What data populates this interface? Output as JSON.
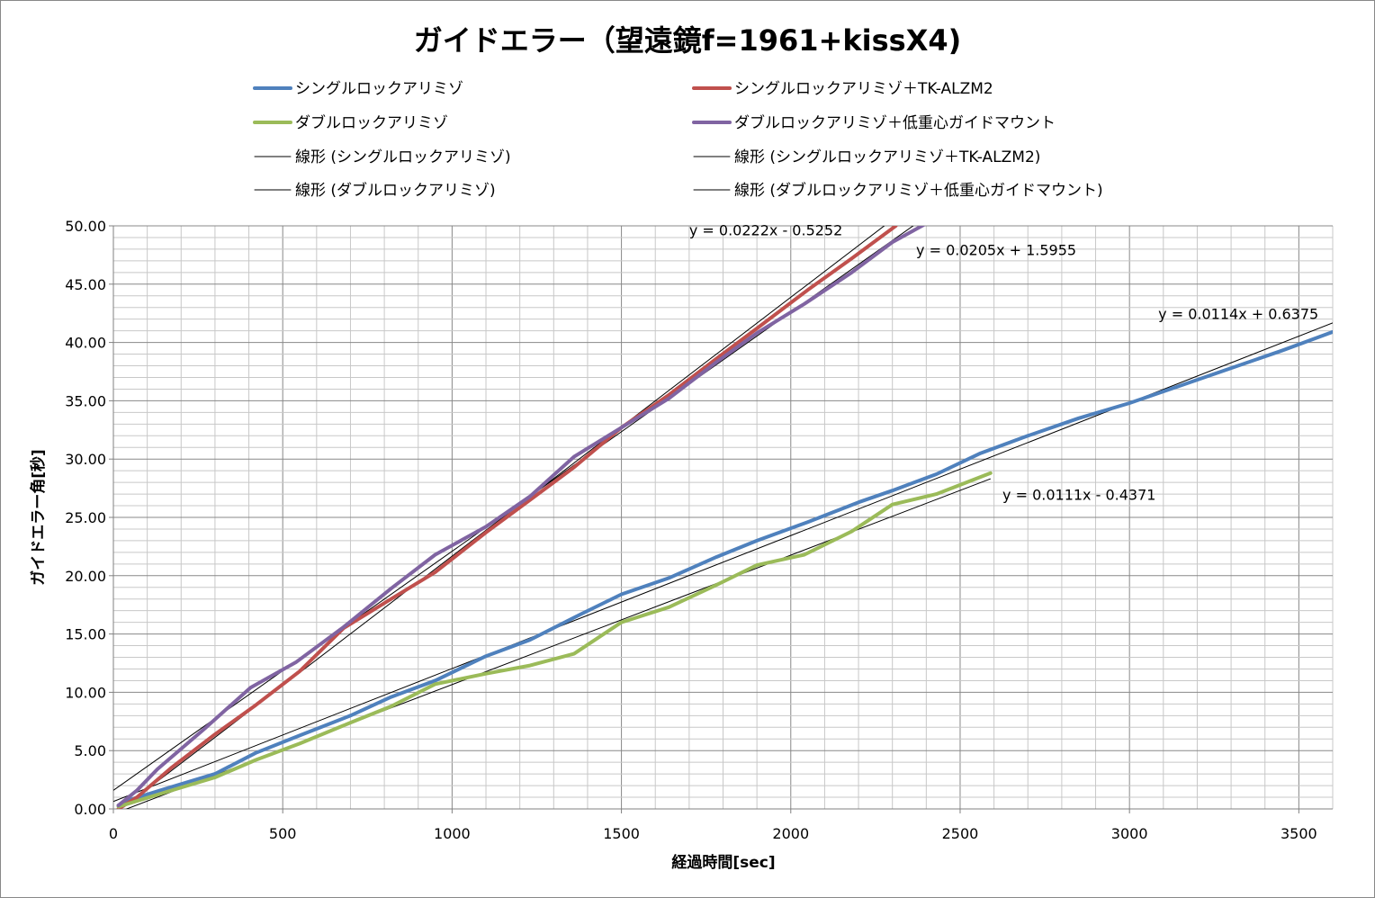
{
  "chart_data": {
    "type": "line",
    "title": "ガイドエラー（望遠鏡f=1961+kissX4)",
    "xlabel": "経過時間[sec]",
    "ylabel": "ガイドエラー角[秒]",
    "xlim": [
      0,
      3600
    ],
    "ylim": [
      0,
      50
    ],
    "xticks": [
      0,
      500,
      1000,
      1500,
      2000,
      2500,
      3000,
      3500
    ],
    "xtick_labels": [
      "0",
      "500",
      "1000",
      "1500",
      "2000",
      "2500",
      "3000",
      "3500"
    ],
    "yticks": [
      0,
      5,
      10,
      15,
      20,
      25,
      30,
      35,
      40,
      45,
      50
    ],
    "ytick_labels": [
      "0.00",
      "5.00",
      "10.00",
      "15.00",
      "20.00",
      "25.00",
      "30.00",
      "35.00",
      "40.00",
      "45.00",
      "50.00"
    ],
    "grid": true,
    "legend_position": "top",
    "series": [
      {
        "name": "シングルロックアリミゾ",
        "color": "#4f81bd",
        "x": [
          15,
          50,
          150,
          300,
          420,
          550,
          700,
          820,
          950,
          1100,
          1230,
          1380,
          1500,
          1640,
          1780,
          1900,
          2050,
          2200,
          2300,
          2430,
          2560,
          2700,
          2850,
          3000,
          3150,
          3300,
          3450,
          3600
        ],
        "y": [
          0.3,
          0.8,
          1.7,
          3.0,
          4.8,
          6.3,
          8.0,
          9.6,
          11.0,
          13.1,
          14.5,
          16.7,
          18.4,
          19.8,
          21.6,
          23.0,
          24.6,
          26.3,
          27.3,
          28.7,
          30.5,
          32.0,
          33.5,
          34.8,
          36.3,
          37.8,
          39.3,
          40.9
        ]
      },
      {
        "name": "シングルロックアリミゾ＋TK-ALZM2",
        "color": "#c0504d",
        "x": [
          15,
          70,
          170,
          300,
          420,
          550,
          680,
          820,
          950,
          1100,
          1230,
          1360,
          1500,
          1640,
          1780,
          1900,
          2050,
          2180,
          2310
        ],
        "y": [
          0.0,
          1.0,
          3.5,
          6.4,
          8.9,
          11.8,
          15.5,
          18.0,
          20.3,
          23.7,
          26.5,
          29.3,
          32.7,
          35.5,
          38.6,
          41.2,
          44.5,
          47.2,
          50.0
        ]
      },
      {
        "name": "ダブルロックアリミゾ",
        "color": "#9bbb59",
        "x": [
          15,
          50,
          150,
          300,
          420,
          550,
          700,
          820,
          950,
          1100,
          1230,
          1360,
          1500,
          1640,
          1780,
          1900,
          2040,
          2180,
          2300,
          2430,
          2590
        ],
        "y": [
          0.2,
          0.5,
          1.4,
          2.7,
          4.2,
          5.6,
          7.4,
          8.8,
          10.7,
          11.6,
          12.3,
          13.3,
          16.0,
          17.3,
          19.2,
          20.9,
          21.8,
          23.8,
          26.1,
          27.0,
          28.8
        ]
      },
      {
        "name": "ダブルロックアリミゾ＋低重心ガイドマウント",
        "color": "#8064a2",
        "x": [
          15,
          70,
          130,
          270,
          405,
          540,
          680,
          820,
          950,
          1100,
          1230,
          1360,
          1500,
          1640,
          1780,
          1900,
          2040,
          2180,
          2300,
          2400
        ],
        "y": [
          0.3,
          1.6,
          3.4,
          6.9,
          10.4,
          12.6,
          15.6,
          18.9,
          21.8,
          24.2,
          26.8,
          30.2,
          32.7,
          35.2,
          38.3,
          40.8,
          43.3,
          46.0,
          48.6,
          50.2
        ]
      }
    ],
    "trendlines": [
      {
        "name": "線形 (シングルロックアリミゾ)",
        "slope": 0.0114,
        "intercept": 0.6375,
        "x_start": 0,
        "x_end": 3600,
        "equation": "y = 0.0114x + 0.6375"
      },
      {
        "name": "線形 (シングルロックアリミゾ＋TK-ALZM2)",
        "slope": 0.0222,
        "intercept": -0.5252,
        "x_start": 30,
        "x_end": 2400,
        "equation": "y = 0.0222x - 0.5252"
      },
      {
        "name": "線形 (ダブルロックアリミゾ)",
        "slope": 0.0111,
        "intercept": -0.4371,
        "x_start": 30,
        "x_end": 2590,
        "equation": "y = 0.0111x - 0.4371"
      },
      {
        "name": "線形 (ダブルロックアリミゾ＋低重心ガイドマウント)",
        "slope": 0.0205,
        "intercept": 1.5955,
        "x_start": 0,
        "x_end": 2500,
        "equation": "y = 0.0205x + 1.5955"
      }
    ],
    "equation_labels": [
      {
        "text": "y = 0.0222x - 0.5252",
        "at_x": 1700,
        "at_y": 49.2
      },
      {
        "text": "y = 0.0205x + 1.5955",
        "at_x": 2370,
        "at_y": 47.5
      },
      {
        "text": "y = 0.0114x + 0.6375",
        "at_x": 3085,
        "at_y": 42.0
      },
      {
        "text": "y = 0.0111x - 0.4371",
        "at_x": 2625,
        "at_y": 26.5
      }
    ]
  }
}
